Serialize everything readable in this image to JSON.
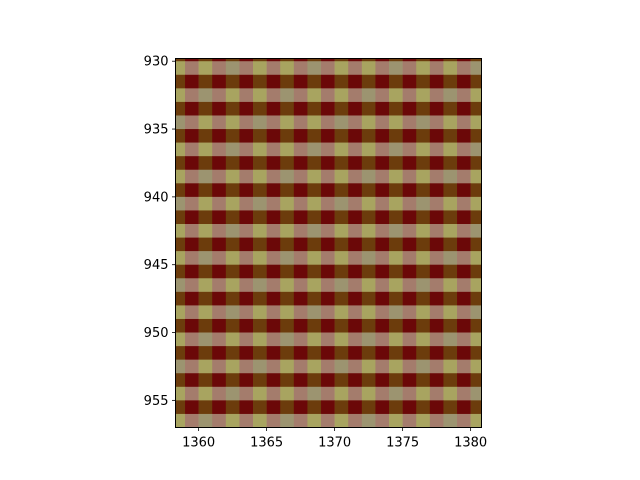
{
  "chart_data": {
    "type": "heatmap",
    "title": "",
    "xlabel": "",
    "ylabel": "",
    "xlim": [
      1358.3,
      1380.8
    ],
    "ylim": [
      957,
      929.8
    ],
    "y_inverted": true,
    "grid": false,
    "legend": "none",
    "x_ticks": [
      "1360",
      "1365",
      "1370",
      "1375",
      "1380"
    ],
    "y_ticks": [
      "930",
      "935",
      "940",
      "945",
      "950",
      "955"
    ],
    "cell_width": 1,
    "cell_height": 1,
    "pattern": "checkered",
    "colors": {
      "dark_red": "#6b0808",
      "olive_brown": "#6c3c0c",
      "muted_rose": "#a47c6c",
      "khaki": "#a8a460",
      "gray_green": "#9c9470"
    }
  }
}
